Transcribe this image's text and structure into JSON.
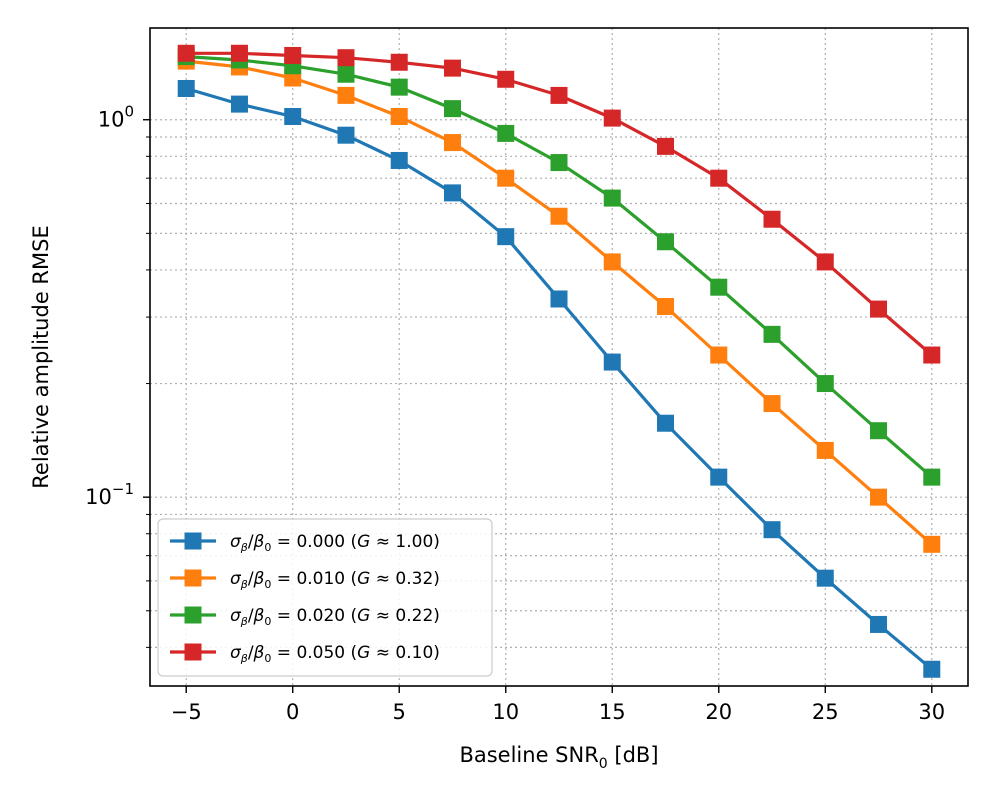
{
  "chart_data": {
    "type": "line",
    "xlabel": {
      "base": "Baseline SNR",
      "sub": "0",
      "suffix": " [dB]"
    },
    "ylabel": "Relative amplitude RMSE",
    "xlim": [
      -6.7,
      31.7
    ],
    "ylim": [
      0.0316,
      1.75
    ],
    "y_scale": "log",
    "grid": true,
    "legend_position": "lower-left",
    "x_ticks": [
      -5,
      0,
      5,
      10,
      15,
      20,
      25,
      30
    ],
    "x_tick_labels": [
      "−5",
      "0",
      "5",
      "10",
      "15",
      "20",
      "25",
      "30"
    ],
    "y_major_ticks": [
      {
        "value": 1,
        "base": "10",
        "exp": "0"
      },
      {
        "value": 0.1,
        "base": "10",
        "exp": "−1"
      }
    ],
    "y_minor_ticks": [
      0.04,
      0.05,
      0.06,
      0.07,
      0.08,
      0.09,
      0.2,
      0.3,
      0.4,
      0.5,
      0.6,
      0.7,
      0.8,
      0.9
    ],
    "x": [
      -5,
      -2.5,
      0,
      2.5,
      5,
      7.5,
      10,
      12.5,
      15,
      17.5,
      20,
      22.5,
      25,
      27.5,
      30
    ],
    "series": [
      {
        "name": "σβ/β0 = 0.000 (G ≈ 1.00)",
        "label": {
          "ratio": "0.000",
          "gain": "1.00"
        },
        "color": "#1f77b4",
        "values": [
          1.21,
          1.1,
          1.02,
          0.91,
          0.78,
          0.64,
          0.49,
          0.335,
          0.228,
          0.157,
          0.113,
          0.082,
          0.061,
          0.046,
          0.035
        ]
      },
      {
        "name": "σβ/β0 = 0.010 (G ≈ 0.32)",
        "label": {
          "ratio": "0.010",
          "gain": "0.32"
        },
        "color": "#ff7f0e",
        "values": [
          1.43,
          1.38,
          1.29,
          1.16,
          1.02,
          0.87,
          0.7,
          0.555,
          0.42,
          0.32,
          0.238,
          0.177,
          0.133,
          0.1,
          0.075
        ]
      },
      {
        "name": "σβ/β0 = 0.020 (G ≈ 0.22)",
        "label": {
          "ratio": "0.020",
          "gain": "0.22"
        },
        "color": "#2ca02c",
        "values": [
          1.47,
          1.44,
          1.39,
          1.32,
          1.22,
          1.07,
          0.92,
          0.77,
          0.62,
          0.475,
          0.36,
          0.27,
          0.2,
          0.15,
          0.113
        ]
      },
      {
        "name": "σβ/β0 = 0.050 (G ≈ 0.10)",
        "label": {
          "ratio": "0.050",
          "gain": "0.10"
        },
        "color": "#d62728",
        "values": [
          1.5,
          1.5,
          1.48,
          1.46,
          1.42,
          1.37,
          1.28,
          1.16,
          1.01,
          0.85,
          0.7,
          0.545,
          0.42,
          0.315,
          0.238
        ]
      }
    ]
  }
}
